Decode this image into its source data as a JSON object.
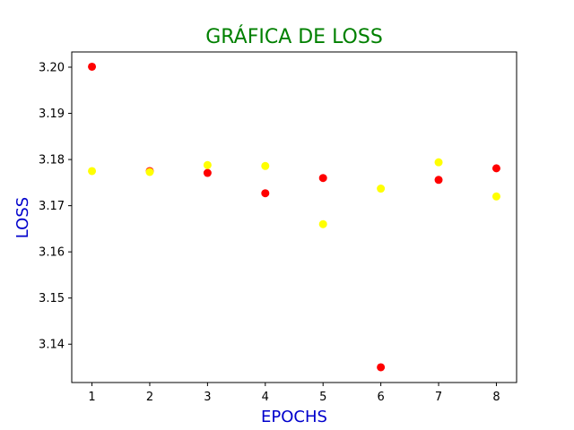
{
  "chart_data": {
    "type": "scatter",
    "title": "GRÁFICA DE LOSS",
    "xlabel": "EPOCHS",
    "ylabel": "LOSS",
    "xlim": [
      0.65,
      8.35
    ],
    "ylim": [
      3.1317,
      3.2033
    ],
    "xticks": [
      1,
      2,
      3,
      4,
      5,
      6,
      7,
      8
    ],
    "xtick_labels": [
      "1",
      "2",
      "3",
      "4",
      "5",
      "6",
      "7",
      "8"
    ],
    "yticks": [
      3.14,
      3.15,
      3.16,
      3.17,
      3.18,
      3.19,
      3.2
    ],
    "ytick_labels": [
      "3.14",
      "3.15",
      "3.16",
      "3.17",
      "3.18",
      "3.19",
      "3.20"
    ],
    "grid": false,
    "series": [
      {
        "color": "#ff0000",
        "x": [
          1,
          2,
          3,
          4,
          5,
          6,
          7,
          8
        ],
        "y": [
          3.2001,
          3.1775,
          3.1771,
          3.1727,
          3.176,
          3.135,
          3.1756,
          3.1781
        ]
      },
      {
        "color": "#ffff00",
        "x": [
          1,
          2,
          3,
          4,
          5,
          6,
          7,
          8
        ],
        "y": [
          3.1775,
          3.1773,
          3.1788,
          3.1786,
          3.166,
          3.1737,
          3.1794,
          3.172
        ]
      }
    ]
  }
}
